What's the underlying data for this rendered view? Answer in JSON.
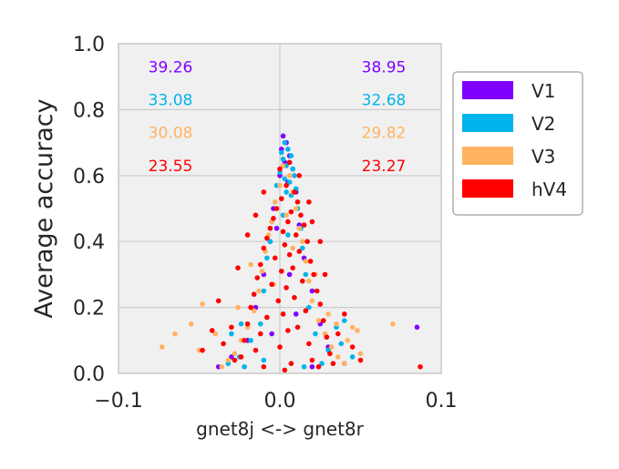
{
  "chart_data": {
    "type": "scatter",
    "title": "",
    "xlabel": "gnet8j <-> gnet8r",
    "ylabel": "Average accuracy",
    "xlim": [
      -0.1,
      0.1
    ],
    "ylim": [
      0.0,
      1.0
    ],
    "xticks": [
      -0.1,
      0.0,
      0.1
    ],
    "xtick_labels": [
      "−0.1",
      "0.0",
      "0.1"
    ],
    "yticks": [
      0.0,
      0.2,
      0.4,
      0.6,
      0.8,
      1.0
    ],
    "ytick_labels": [
      "0.0",
      "0.2",
      "0.4",
      "0.6",
      "0.8",
      "1.0"
    ],
    "grid": true,
    "legend_position": "outside-right",
    "colors": {
      "V1": "#8000ff",
      "V2": "#00b4ec",
      "V3": "#ffb360",
      "hV4": "#ff0000"
    },
    "legend": [
      "V1",
      "V2",
      "V3",
      "hV4"
    ],
    "annotations": [
      {
        "series": "V1",
        "left": "39.26",
        "right": "38.95",
        "y": 0.93
      },
      {
        "series": "V2",
        "left": "33.08",
        "right": "32.68",
        "y": 0.83
      },
      {
        "series": "V3",
        "left": "30.08",
        "right": "29.82",
        "y": 0.73
      },
      {
        "series": "hV4",
        "left": "23.55",
        "right": "23.27",
        "y": 0.63
      }
    ],
    "series": [
      {
        "name": "V1",
        "points": [
          [
            0.002,
            0.72
          ],
          [
            0.004,
            0.7
          ],
          [
            0.001,
            0.68
          ],
          [
            0.006,
            0.66
          ],
          [
            0.003,
            0.64
          ],
          [
            0.008,
            0.62
          ],
          [
            0.0,
            0.6
          ],
          [
            0.005,
            0.58
          ],
          [
            0.01,
            0.55
          ],
          [
            -0.004,
            0.5
          ],
          [
            0.012,
            0.45
          ],
          [
            -0.006,
            0.4
          ],
          [
            0.015,
            0.35
          ],
          [
            -0.01,
            0.3
          ],
          [
            0.02,
            0.25
          ],
          [
            -0.015,
            0.2
          ],
          [
            0.025,
            0.15
          ],
          [
            -0.02,
            0.1
          ],
          [
            0.03,
            0.08
          ],
          [
            -0.03,
            0.05
          ],
          [
            -0.038,
            0.02
          ],
          [
            0.04,
            0.03
          ],
          [
            0.085,
            0.14
          ],
          [
            0.02,
            0.02
          ],
          [
            -0.005,
            0.12
          ],
          [
            0.01,
            0.18
          ],
          [
            0.006,
            0.3
          ],
          [
            -0.002,
            0.44
          ]
        ]
      },
      {
        "name": "V2",
        "points": [
          [
            0.003,
            0.7
          ],
          [
            0.005,
            0.68
          ],
          [
            0.001,
            0.67
          ],
          [
            0.007,
            0.66
          ],
          [
            0.002,
            0.65
          ],
          [
            0.006,
            0.64
          ],
          [
            0.004,
            0.63
          ],
          [
            0.008,
            0.62
          ],
          [
            0.0,
            0.61
          ],
          [
            0.009,
            0.6
          ],
          [
            0.003,
            0.59
          ],
          [
            0.006,
            0.58
          ],
          [
            -0.002,
            0.57
          ],
          [
            0.01,
            0.56
          ],
          [
            0.004,
            0.55
          ],
          [
            0.007,
            0.54
          ],
          [
            -0.003,
            0.52
          ],
          [
            0.011,
            0.5
          ],
          [
            0.002,
            0.48
          ],
          [
            -0.005,
            0.46
          ],
          [
            0.013,
            0.44
          ],
          [
            0.005,
            0.42
          ],
          [
            -0.006,
            0.4
          ],
          [
            0.014,
            0.38
          ],
          [
            -0.008,
            0.35
          ],
          [
            0.016,
            0.3
          ],
          [
            -0.01,
            0.25
          ],
          [
            0.018,
            0.2
          ],
          [
            -0.012,
            0.15
          ],
          [
            0.022,
            0.12
          ],
          [
            -0.018,
            0.1
          ],
          [
            0.03,
            0.07
          ],
          [
            -0.025,
            0.05
          ],
          [
            0.038,
            0.09
          ],
          [
            0.045,
            0.05
          ],
          [
            -0.032,
            0.03
          ],
          [
            -0.022,
            0.02
          ],
          [
            0.035,
            0.14
          ],
          [
            -0.03,
            0.12
          ],
          [
            0.04,
            0.16
          ],
          [
            -0.024,
            0.15
          ],
          [
            0.026,
            0.03
          ],
          [
            0.015,
            0.02
          ],
          [
            -0.01,
            0.04
          ]
        ]
      },
      {
        "name": "V3",
        "points": [
          [
            0.002,
            0.63
          ],
          [
            0.006,
            0.6
          ],
          [
            0.0,
            0.57
          ],
          [
            0.008,
            0.55
          ],
          [
            -0.003,
            0.52
          ],
          [
            0.01,
            0.5
          ],
          [
            0.004,
            0.48
          ],
          [
            -0.005,
            0.46
          ],
          [
            0.012,
            0.44
          ],
          [
            -0.007,
            0.42
          ],
          [
            0.014,
            0.4
          ],
          [
            -0.009,
            0.37
          ],
          [
            0.016,
            0.34
          ],
          [
            -0.011,
            0.31
          ],
          [
            0.018,
            0.28
          ],
          [
            -0.013,
            0.25
          ],
          [
            0.02,
            0.22
          ],
          [
            -0.016,
            0.19
          ],
          [
            0.024,
            0.16
          ],
          [
            -0.02,
            0.14
          ],
          [
            0.028,
            0.12
          ],
          [
            -0.024,
            0.1
          ],
          [
            0.032,
            0.08
          ],
          [
            -0.028,
            0.06
          ],
          [
            0.036,
            0.05
          ],
          [
            -0.032,
            0.04
          ],
          [
            0.04,
            0.03
          ],
          [
            -0.036,
            0.02
          ],
          [
            0.045,
            0.14
          ],
          [
            0.048,
            0.13
          ],
          [
            0.035,
            0.15
          ],
          [
            0.07,
            0.15
          ],
          [
            -0.055,
            0.15
          ],
          [
            -0.065,
            0.12
          ],
          [
            -0.073,
            0.08
          ],
          [
            -0.05,
            0.07
          ],
          [
            -0.048,
            0.21
          ],
          [
            0.042,
            0.1
          ],
          [
            -0.04,
            0.12
          ],
          [
            0.05,
            0.06
          ],
          [
            0.03,
            0.18
          ],
          [
            -0.026,
            0.2
          ],
          [
            0.022,
            0.3
          ],
          [
            -0.018,
            0.33
          ],
          [
            0.008,
            0.38
          ],
          [
            -0.004,
            0.27
          ]
        ]
      },
      {
        "name": "hV4",
        "points": [
          [
            0.004,
            0.57
          ],
          [
            0.009,
            0.55
          ],
          [
            0.001,
            0.53
          ],
          [
            0.011,
            0.52
          ],
          [
            -0.002,
            0.5
          ],
          [
            0.007,
            0.49
          ],
          [
            0.013,
            0.48
          ],
          [
            -0.004,
            0.47
          ],
          [
            0.005,
            0.46
          ],
          [
            0.015,
            0.45
          ],
          [
            -0.006,
            0.44
          ],
          [
            0.002,
            0.43
          ],
          [
            0.01,
            0.42
          ],
          [
            -0.008,
            0.41
          ],
          [
            0.017,
            0.4
          ],
          [
            0.003,
            0.39
          ],
          [
            -0.01,
            0.38
          ],
          [
            0.012,
            0.37
          ],
          [
            0.006,
            0.36
          ],
          [
            -0.003,
            0.35
          ],
          [
            0.019,
            0.34
          ],
          [
            -0.012,
            0.33
          ],
          [
            0.008,
            0.32
          ],
          [
            0.001,
            0.31
          ],
          [
            0.021,
            0.3
          ],
          [
            -0.014,
            0.29
          ],
          [
            0.014,
            0.28
          ],
          [
            -0.005,
            0.27
          ],
          [
            0.004,
            0.26
          ],
          [
            0.023,
            0.25
          ],
          [
            -0.016,
            0.24
          ],
          [
            0.009,
            0.23
          ],
          [
            -0.001,
            0.22
          ],
          [
            0.025,
            0.21
          ],
          [
            -0.018,
            0.2
          ],
          [
            0.016,
            0.19
          ],
          [
            0.002,
            0.18
          ],
          [
            -0.008,
            0.17
          ],
          [
            0.027,
            0.16
          ],
          [
            -0.02,
            0.15
          ],
          [
            0.011,
            0.14
          ],
          [
            0.005,
            0.13
          ],
          [
            -0.012,
            0.12
          ],
          [
            0.029,
            0.11
          ],
          [
            -0.022,
            0.1
          ],
          [
            0.018,
            0.09
          ],
          [
            0.0,
            0.08
          ],
          [
            -0.015,
            0.07
          ],
          [
            0.031,
            0.06
          ],
          [
            -0.024,
            0.05
          ],
          [
            0.02,
            0.04
          ],
          [
            0.007,
            0.03
          ],
          [
            -0.01,
            0.02
          ],
          [
            0.033,
            0.03
          ],
          [
            -0.028,
            0.04
          ],
          [
            0.024,
            0.02
          ],
          [
            0.003,
            0.01
          ],
          [
            -0.035,
            0.09
          ],
          [
            0.036,
            0.12
          ],
          [
            -0.03,
            0.14
          ],
          [
            0.04,
            0.18
          ],
          [
            -0.038,
            0.22
          ],
          [
            0.028,
            0.3
          ],
          [
            -0.026,
            0.32
          ],
          [
            0.025,
            0.4
          ],
          [
            -0.02,
            0.42
          ],
          [
            0.02,
            0.46
          ],
          [
            -0.015,
            0.48
          ],
          [
            0.018,
            0.52
          ],
          [
            -0.01,
            0.55
          ],
          [
            -0.042,
            0.13
          ],
          [
            0.045,
            0.08
          ],
          [
            -0.048,
            0.07
          ],
          [
            0.05,
            0.04
          ],
          [
            0.087,
            0.02
          ],
          [
            0.012,
            0.6
          ],
          [
            0.0,
            0.62
          ],
          [
            0.006,
            0.64
          ]
        ]
      }
    ]
  }
}
